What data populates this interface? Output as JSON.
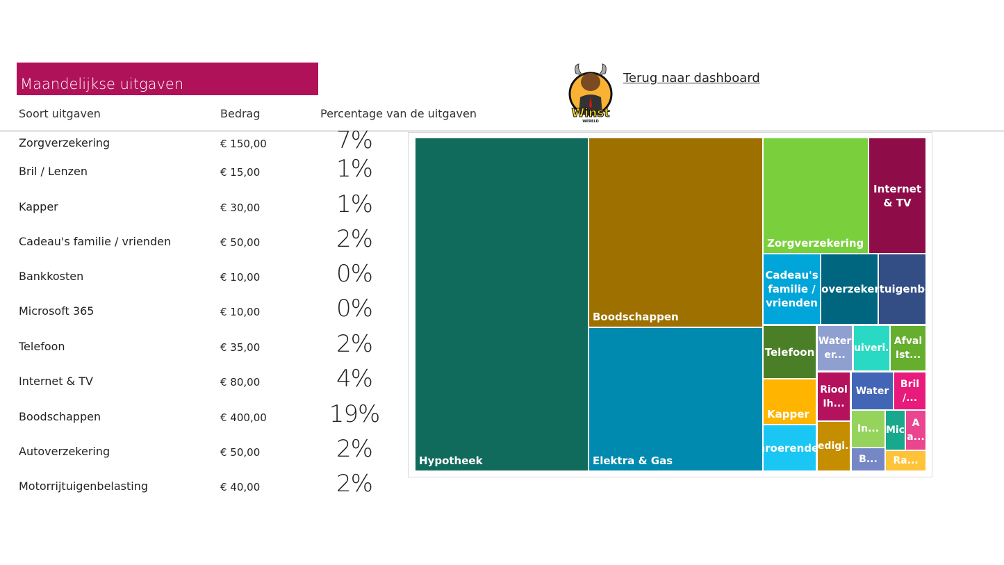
{
  "title": "Maandelijkse uitgaven",
  "headers": {
    "category": "Soort uitgaven",
    "amount": "Bedrag",
    "percentage": "Percentage van de uitgaven"
  },
  "rows": [
    {
      "name": "Zorgverzekering",
      "amount": "€ 150,00",
      "pct": "7%"
    },
    {
      "name": "Bril / Lenzen",
      "amount": "€ 15,00",
      "pct": "1%"
    },
    {
      "name": "Kapper",
      "amount": "€ 30,00",
      "pct": "1%"
    },
    {
      "name": "Cadeau's familie / vrienden",
      "amount": "€ 50,00",
      "pct": "2%"
    },
    {
      "name": "Bankkosten",
      "amount": "€ 10,00",
      "pct": "0%"
    },
    {
      "name": "Microsoft 365",
      "amount": "€ 10,00",
      "pct": "0%"
    },
    {
      "name": "Telefoon",
      "amount": "€ 35,00",
      "pct": "2%"
    },
    {
      "name": "Internet & TV",
      "amount": "€ 80,00",
      "pct": "4%"
    },
    {
      "name": "Boodschappen",
      "amount": "€ 400,00",
      "pct": "19%"
    },
    {
      "name": "Autoverzekering",
      "amount": "€ 50,00",
      "pct": "2%"
    },
    {
      "name": "Motorrijtuigenbelasting",
      "amount": "€ 40,00",
      "pct": "2%"
    }
  ],
  "link": "Terug naar dashboard",
  "logo": {
    "text": "Winst",
    "subtext": "WERELD"
  },
  "chart_data": {
    "type": "treemap",
    "cells": [
      {
        "label": "Hypotheek",
        "color": "#116b5c"
      },
      {
        "label": "Boodschappen",
        "color": "#9e7000",
        "value": 400
      },
      {
        "label": "Elektra & Gas",
        "color": "#008ab0"
      },
      {
        "label": "Zorgverzekering",
        "color": "#7ad03c",
        "value": 150
      },
      {
        "label": "Internet & TV",
        "color": "#8e0c48",
        "value": 80
      },
      {
        "label": "Cadeau's familie / vrienden",
        "color": "#00a6d9",
        "value": 50
      },
      {
        "label": "Autoverzekering",
        "color": "#006680",
        "value": 50
      },
      {
        "label": "Motorrijtuigenbelasting",
        "color": "#334d85",
        "value": 40
      },
      {
        "label": "Telefoon",
        "color": "#4a7f27",
        "value": 35
      },
      {
        "label": "Water er...",
        "color": "#8f9fd0"
      },
      {
        "label": "Zuiveri...",
        "color": "#2ad9c3"
      },
      {
        "label": "Afval Ist...",
        "color": "#66ae2d"
      },
      {
        "label": "Kapper",
        "color": "#ffb400",
        "value": 30
      },
      {
        "label": "Onroerende...",
        "color": "#1ac6f3"
      },
      {
        "label": "Riool Ih...",
        "color": "#b4125d"
      },
      {
        "label": "Water",
        "color": "#4265b5"
      },
      {
        "label": "Bril /...",
        "color": "#e81a7b",
        "value": 15
      },
      {
        "label": "Ledigi...",
        "color": "#c48e00"
      },
      {
        "label": "In...",
        "color": "#96d35c"
      },
      {
        "label": "Mic",
        "color": "#18a88d",
        "value": 10
      },
      {
        "label": "A a...",
        "color": "#ea4690"
      },
      {
        "label": "B...",
        "color": "#7687c6",
        "value": 10
      },
      {
        "label": "Ra...",
        "color": "#ffc33a"
      }
    ]
  }
}
